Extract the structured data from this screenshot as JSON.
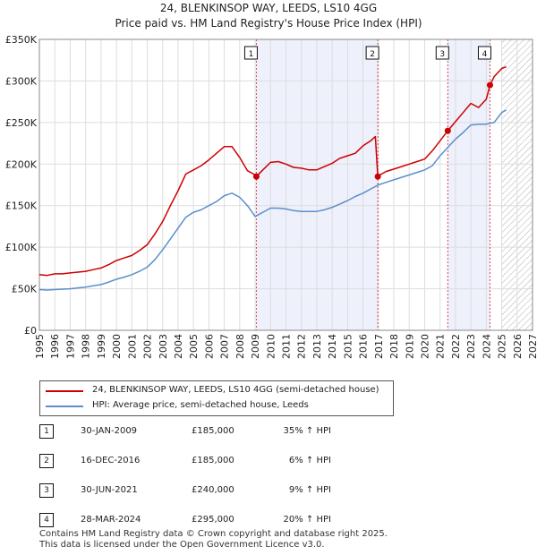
{
  "chart_data": {
    "type": "line",
    "title": "24, BLENKINSOP WAY, LEEDS, LS10 4GG",
    "subtitle": "Price paid vs. HM Land Registry's House Price Index (HPI)",
    "xlabel": "",
    "ylabel": "",
    "xlim": [
      1995,
      2027
    ],
    "ylim": [
      0,
      350000
    ],
    "xticks": [
      "1995",
      "1996",
      "1997",
      "1998",
      "1999",
      "2000",
      "2001",
      "2002",
      "2003",
      "2004",
      "2005",
      "2006",
      "2007",
      "2008",
      "2009",
      "2010",
      "2011",
      "2012",
      "2013",
      "2014",
      "2015",
      "2016",
      "2017",
      "2018",
      "2019",
      "2020",
      "2021",
      "2022",
      "2023",
      "2024",
      "2025",
      "2026",
      "2027"
    ],
    "yticks": [
      {
        "value": 0,
        "label": "£0"
      },
      {
        "value": 50000,
        "label": "£50K"
      },
      {
        "value": 100000,
        "label": "£100K"
      },
      {
        "value": 150000,
        "label": "£150K"
      },
      {
        "value": 200000,
        "label": "£200K"
      },
      {
        "value": 250000,
        "label": "£250K"
      },
      {
        "value": 300000,
        "label": "£300K"
      },
      {
        "value": 350000,
        "label": "£350K"
      }
    ],
    "shaded_ranges": [
      [
        2009.08,
        2016.96
      ],
      [
        2021.5,
        2024.24
      ]
    ],
    "forecast_from": 2025.0,
    "series": [
      {
        "name": "24, BLENKINSOP WAY, LEEDS, LS10 4GG (semi-detached house)",
        "color": "#cc0000",
        "x": [
          1995.0,
          1995.5,
          1996.0,
          1996.5,
          1997.0,
          1997.5,
          1998.0,
          1998.5,
          1999.0,
          1999.5,
          2000.0,
          2000.5,
          2001.0,
          2001.5,
          2002.0,
          2002.5,
          2003.0,
          2003.5,
          2004.0,
          2004.5,
          2005.0,
          2005.5,
          2006.0,
          2006.5,
          2007.0,
          2007.5,
          2008.0,
          2008.5,
          2009.0,
          2009.08,
          2009.5,
          2010.0,
          2010.5,
          2011.0,
          2011.5,
          2012.0,
          2012.5,
          2013.0,
          2013.5,
          2014.0,
          2014.5,
          2015.0,
          2015.5,
          2016.0,
          2016.5,
          2016.8,
          2016.96,
          2017.2,
          2017.5,
          2018.0,
          2018.5,
          2019.0,
          2019.5,
          2020.0,
          2020.5,
          2021.0,
          2021.5,
          2022.0,
          2022.5,
          2023.0,
          2023.5,
          2024.0,
          2024.24,
          2024.5,
          2025.0,
          2025.3
        ],
        "y": [
          67000,
          66000,
          68000,
          68000,
          69000,
          70000,
          71000,
          73000,
          75000,
          79000,
          84000,
          87000,
          90000,
          96000,
          103000,
          116000,
          131000,
          150000,
          168000,
          188000,
          193000,
          198000,
          205000,
          213000,
          221000,
          221000,
          208000,
          192000,
          187000,
          185000,
          193000,
          202000,
          203000,
          200000,
          196000,
          195000,
          193000,
          193000,
          197000,
          201000,
          207000,
          210000,
          213000,
          222000,
          228000,
          233000,
          185000,
          188000,
          191000,
          194000,
          197000,
          200000,
          203000,
          206000,
          216000,
          228000,
          240000,
          251000,
          262000,
          273000,
          268000,
          278000,
          295000,
          305000,
          315000,
          317000
        ]
      },
      {
        "name": "HPI: Average price, semi-detached house, Leeds",
        "color": "#5b8fcc",
        "x": [
          1995.0,
          1995.5,
          1996.0,
          1996.5,
          1997.0,
          1997.5,
          1998.0,
          1998.5,
          1999.0,
          1999.5,
          2000.0,
          2000.5,
          2001.0,
          2001.5,
          2002.0,
          2002.5,
          2003.0,
          2003.5,
          2004.0,
          2004.5,
          2005.0,
          2005.5,
          2006.0,
          2006.5,
          2007.0,
          2007.5,
          2008.0,
          2008.5,
          2009.0,
          2009.5,
          2010.0,
          2010.5,
          2011.0,
          2011.5,
          2012.0,
          2012.5,
          2013.0,
          2013.5,
          2014.0,
          2014.5,
          2015.0,
          2015.5,
          2016.0,
          2016.5,
          2017.0,
          2017.5,
          2018.0,
          2018.5,
          2019.0,
          2019.5,
          2020.0,
          2020.5,
          2021.0,
          2021.5,
          2022.0,
          2022.5,
          2023.0,
          2023.5,
          2024.0,
          2024.5,
          2025.0,
          2025.3
        ],
        "y": [
          49000,
          48500,
          49000,
          49500,
          50000,
          51000,
          52000,
          53500,
          55000,
          58000,
          61500,
          64000,
          67000,
          71000,
          76000,
          85000,
          97000,
          110000,
          123000,
          136000,
          142000,
          145000,
          150000,
          155000,
          162000,
          165000,
          160000,
          150000,
          137000,
          142000,
          147000,
          147000,
          146000,
          144000,
          143000,
          143000,
          143000,
          145000,
          148000,
          152000,
          156000,
          161000,
          165000,
          170000,
          175000,
          178000,
          181000,
          184000,
          187000,
          190000,
          193000,
          198000,
          210000,
          220000,
          230000,
          238000,
          247000,
          248000,
          248000,
          250000,
          262000,
          265000
        ]
      }
    ],
    "markers": [
      {
        "label": "1",
        "x": 2009.08,
        "y": 185000
      },
      {
        "label": "2",
        "x": 2016.96,
        "y": 185000
      },
      {
        "label": "3",
        "x": 2021.5,
        "y": 240000
      },
      {
        "label": "4",
        "x": 2024.24,
        "y": 295000
      }
    ]
  },
  "legend": {
    "property_label": "24, BLENKINSOP WAY, LEEDS, LS10 4GG (semi-detached house)",
    "hpi_label": "HPI: Average price, semi-detached house, Leeds",
    "property_color": "#cc0000",
    "hpi_color": "#5b8fcc"
  },
  "sales": [
    {
      "num": "1",
      "date": "30-JAN-2009",
      "price": "£185,000",
      "hpi": "35% ↑ HPI"
    },
    {
      "num": "2",
      "date": "16-DEC-2016",
      "price": "£185,000",
      "hpi": "6% ↑ HPI"
    },
    {
      "num": "3",
      "date": "30-JUN-2021",
      "price": "£240,000",
      "hpi": "9% ↑ HPI"
    },
    {
      "num": "4",
      "date": "28-MAR-2024",
      "price": "£295,000",
      "hpi": "20% ↑ HPI"
    }
  ],
  "footer": {
    "line1": "Contains HM Land Registry data © Crown copyright and database right 2025.",
    "line2": "This data is licensed under the Open Government Licence v3.0."
  }
}
